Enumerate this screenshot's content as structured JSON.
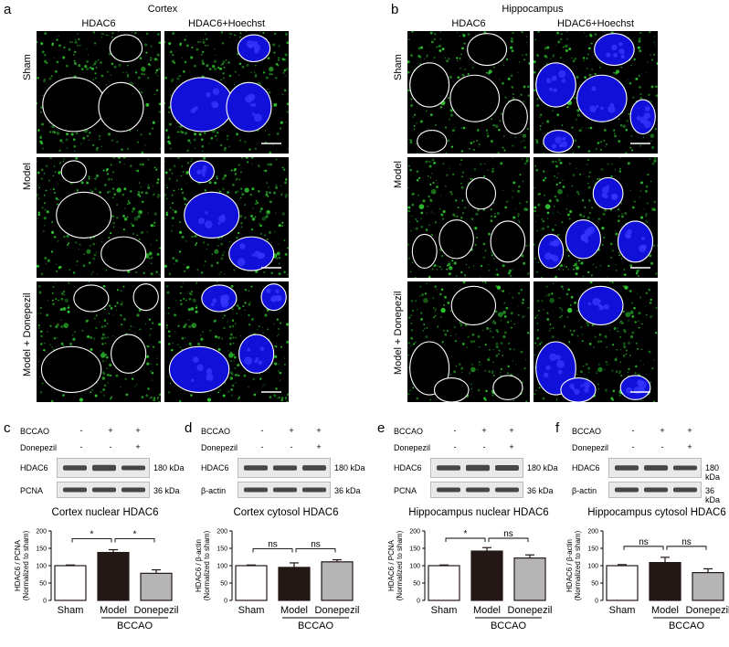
{
  "panel_a": {
    "letter": "a",
    "title": "Cortex",
    "columns": [
      "HDAC6",
      "HDAC6+Hoechst"
    ],
    "rows": [
      "Sham",
      "Model",
      "Model + Donepezil"
    ]
  },
  "panel_b": {
    "letter": "b",
    "title": "Hippocampus",
    "columns": [
      "HDAC6",
      "HDAC6+Hoechst"
    ],
    "rows": [
      "Sham",
      "Model",
      "Model + Donepezil"
    ]
  },
  "bottom_panels": [
    {
      "letter": "c",
      "blot_top": "HDAC6",
      "blot_bottom": "PCNA",
      "kda_top": "180 kDa",
      "kda_bottom": "36 kDa"
    },
    {
      "letter": "d",
      "blot_top": "HDAC6",
      "blot_bottom": "β-actin",
      "kda_top": "180 kDa",
      "kda_bottom": "36 kDa"
    },
    {
      "letter": "e",
      "blot_top": "HDAC6",
      "blot_bottom": "PCNA",
      "kda_top": "180 kDa",
      "kda_bottom": "36 kDa"
    },
    {
      "letter": "f",
      "blot_top": "HDAC6",
      "blot_bottom": "β-actin",
      "kda_top": "180 kDa",
      "kda_bottom": "36 kDa"
    }
  ],
  "treatment_labels": {
    "bccao": "BCCAO",
    "donepezil": "Donepezil",
    "bccao_signs": [
      "-",
      "+",
      "+"
    ],
    "donepezil_signs": [
      "-",
      "-",
      "+"
    ]
  },
  "colors": {
    "sham_fill": "#ffffff",
    "model_fill": "#231815",
    "donepezil_fill": "#b5b5b6",
    "hdac6_green": "#2fc22f",
    "hoechst_blue": "#1010d8"
  },
  "chart_data": [
    {
      "type": "bar",
      "title": "Cortex nuclear HDAC6",
      "ylabel": [
        "HDAC6 / PCNA",
        "(Normalized to sham)"
      ],
      "categories": [
        "Sham",
        "Model",
        "Donepezil"
      ],
      "group_label": "BCCAO",
      "values": [
        100,
        138,
        78
      ],
      "errors": [
        2,
        8,
        10
      ],
      "ylim": [
        0,
        200
      ],
      "yticks": [
        0,
        50,
        100,
        150,
        200
      ],
      "significance": [
        "*",
        "*"
      ]
    },
    {
      "type": "bar",
      "title": "Cortex cytosol HDAC6",
      "ylabel": [
        "HDAC6 / β-actin",
        "(Normalized to sham)"
      ],
      "categories": [
        "Sham",
        "Model",
        "Donepezil"
      ],
      "group_label": "BCCAO",
      "values": [
        100,
        95,
        111
      ],
      "errors": [
        2,
        13,
        6
      ],
      "ylim": [
        0,
        200
      ],
      "yticks": [
        0,
        50,
        100,
        150,
        200
      ],
      "significance": [
        "ns",
        "ns"
      ]
    },
    {
      "type": "bar",
      "title": "Hippocampus nuclear HDAC6",
      "ylabel": [
        "HDAC6 / PCNA",
        "(Normalized to sham)"
      ],
      "categories": [
        "Sham",
        "Model",
        "Donepezil"
      ],
      "group_label": "BCCAO",
      "values": [
        100,
        142,
        122
      ],
      "errors": [
        2,
        10,
        9
      ],
      "ylim": [
        0,
        200
      ],
      "yticks": [
        0,
        50,
        100,
        150,
        200
      ],
      "significance": [
        "*",
        "ns"
      ]
    },
    {
      "type": "bar",
      "title": "Hippocampus cytosol HDAC6",
      "ylabel": [
        "HDAC6 / β-actin",
        "(Normalized to sham)"
      ],
      "categories": [
        "Sham",
        "Model",
        "Donepezil"
      ],
      "group_label": "BCCAO",
      "values": [
        100,
        109,
        80
      ],
      "errors": [
        3,
        15,
        11
      ],
      "ylim": [
        0,
        200
      ],
      "yticks": [
        0,
        50,
        100,
        150,
        200
      ],
      "significance": [
        "ns",
        "ns"
      ]
    }
  ]
}
